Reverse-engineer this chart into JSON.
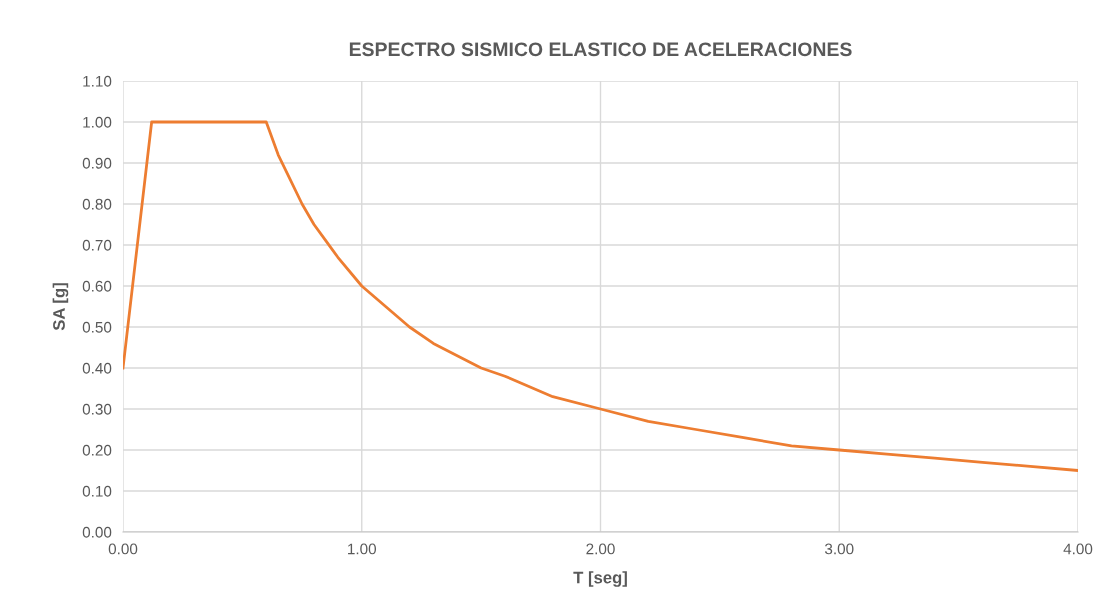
{
  "chart_data": {
    "type": "line",
    "title": "ESPECTRO SISMICO ELASTICO DE ACELERACIONES",
    "xlabel": "T [seg]",
    "ylabel": "SA [g]",
    "series": [
      {
        "color": "#ed7d31",
        "x": [
          0,
          0.12,
          0.6,
          0.65,
          0.7,
          0.75,
          0.8,
          0.85,
          0.9,
          1.0,
          1.1,
          1.2,
          1.3,
          1.4,
          1.5,
          1.6,
          1.8,
          2.0,
          2.2,
          2.4,
          2.6,
          2.8,
          3.0,
          3.2,
          3.4,
          3.6,
          3.8,
          4.0
        ],
        "values": [
          0.4,
          1.0,
          1.0,
          0.92,
          0.86,
          0.8,
          0.75,
          0.71,
          0.67,
          0.6,
          0.55,
          0.5,
          0.46,
          0.43,
          0.4,
          0.38,
          0.33,
          0.3,
          0.27,
          0.25,
          0.23,
          0.21,
          0.2,
          0.19,
          0.18,
          0.17,
          0.16,
          0.15
        ]
      }
    ],
    "xlim": [
      0,
      4
    ],
    "ylim": [
      0,
      1.1
    ],
    "xticks": [
      {
        "value": 0,
        "label": "0.00"
      },
      {
        "value": 1,
        "label": "1.00"
      },
      {
        "value": 2,
        "label": "2.00"
      },
      {
        "value": 3,
        "label": "3.00"
      },
      {
        "value": 4,
        "label": "4.00"
      }
    ],
    "yticks": [
      {
        "value": 0,
        "label": "0.00"
      },
      {
        "value": 0.1,
        "label": "0.10"
      },
      {
        "value": 0.2,
        "label": "0.20"
      },
      {
        "value": 0.3,
        "label": "0.30"
      },
      {
        "value": 0.4,
        "label": "0.40"
      },
      {
        "value": 0.5,
        "label": "0.50"
      },
      {
        "value": 0.6,
        "label": "0.60"
      },
      {
        "value": 0.7,
        "label": "0.70"
      },
      {
        "value": 0.8,
        "label": "0.80"
      },
      {
        "value": 0.9,
        "label": "0.90"
      },
      {
        "value": 1.0,
        "label": "1.00"
      },
      {
        "value": 1.1,
        "label": "1.10"
      }
    ],
    "grid": true,
    "legend": false,
    "marker": "none",
    "line_style": "solid"
  }
}
